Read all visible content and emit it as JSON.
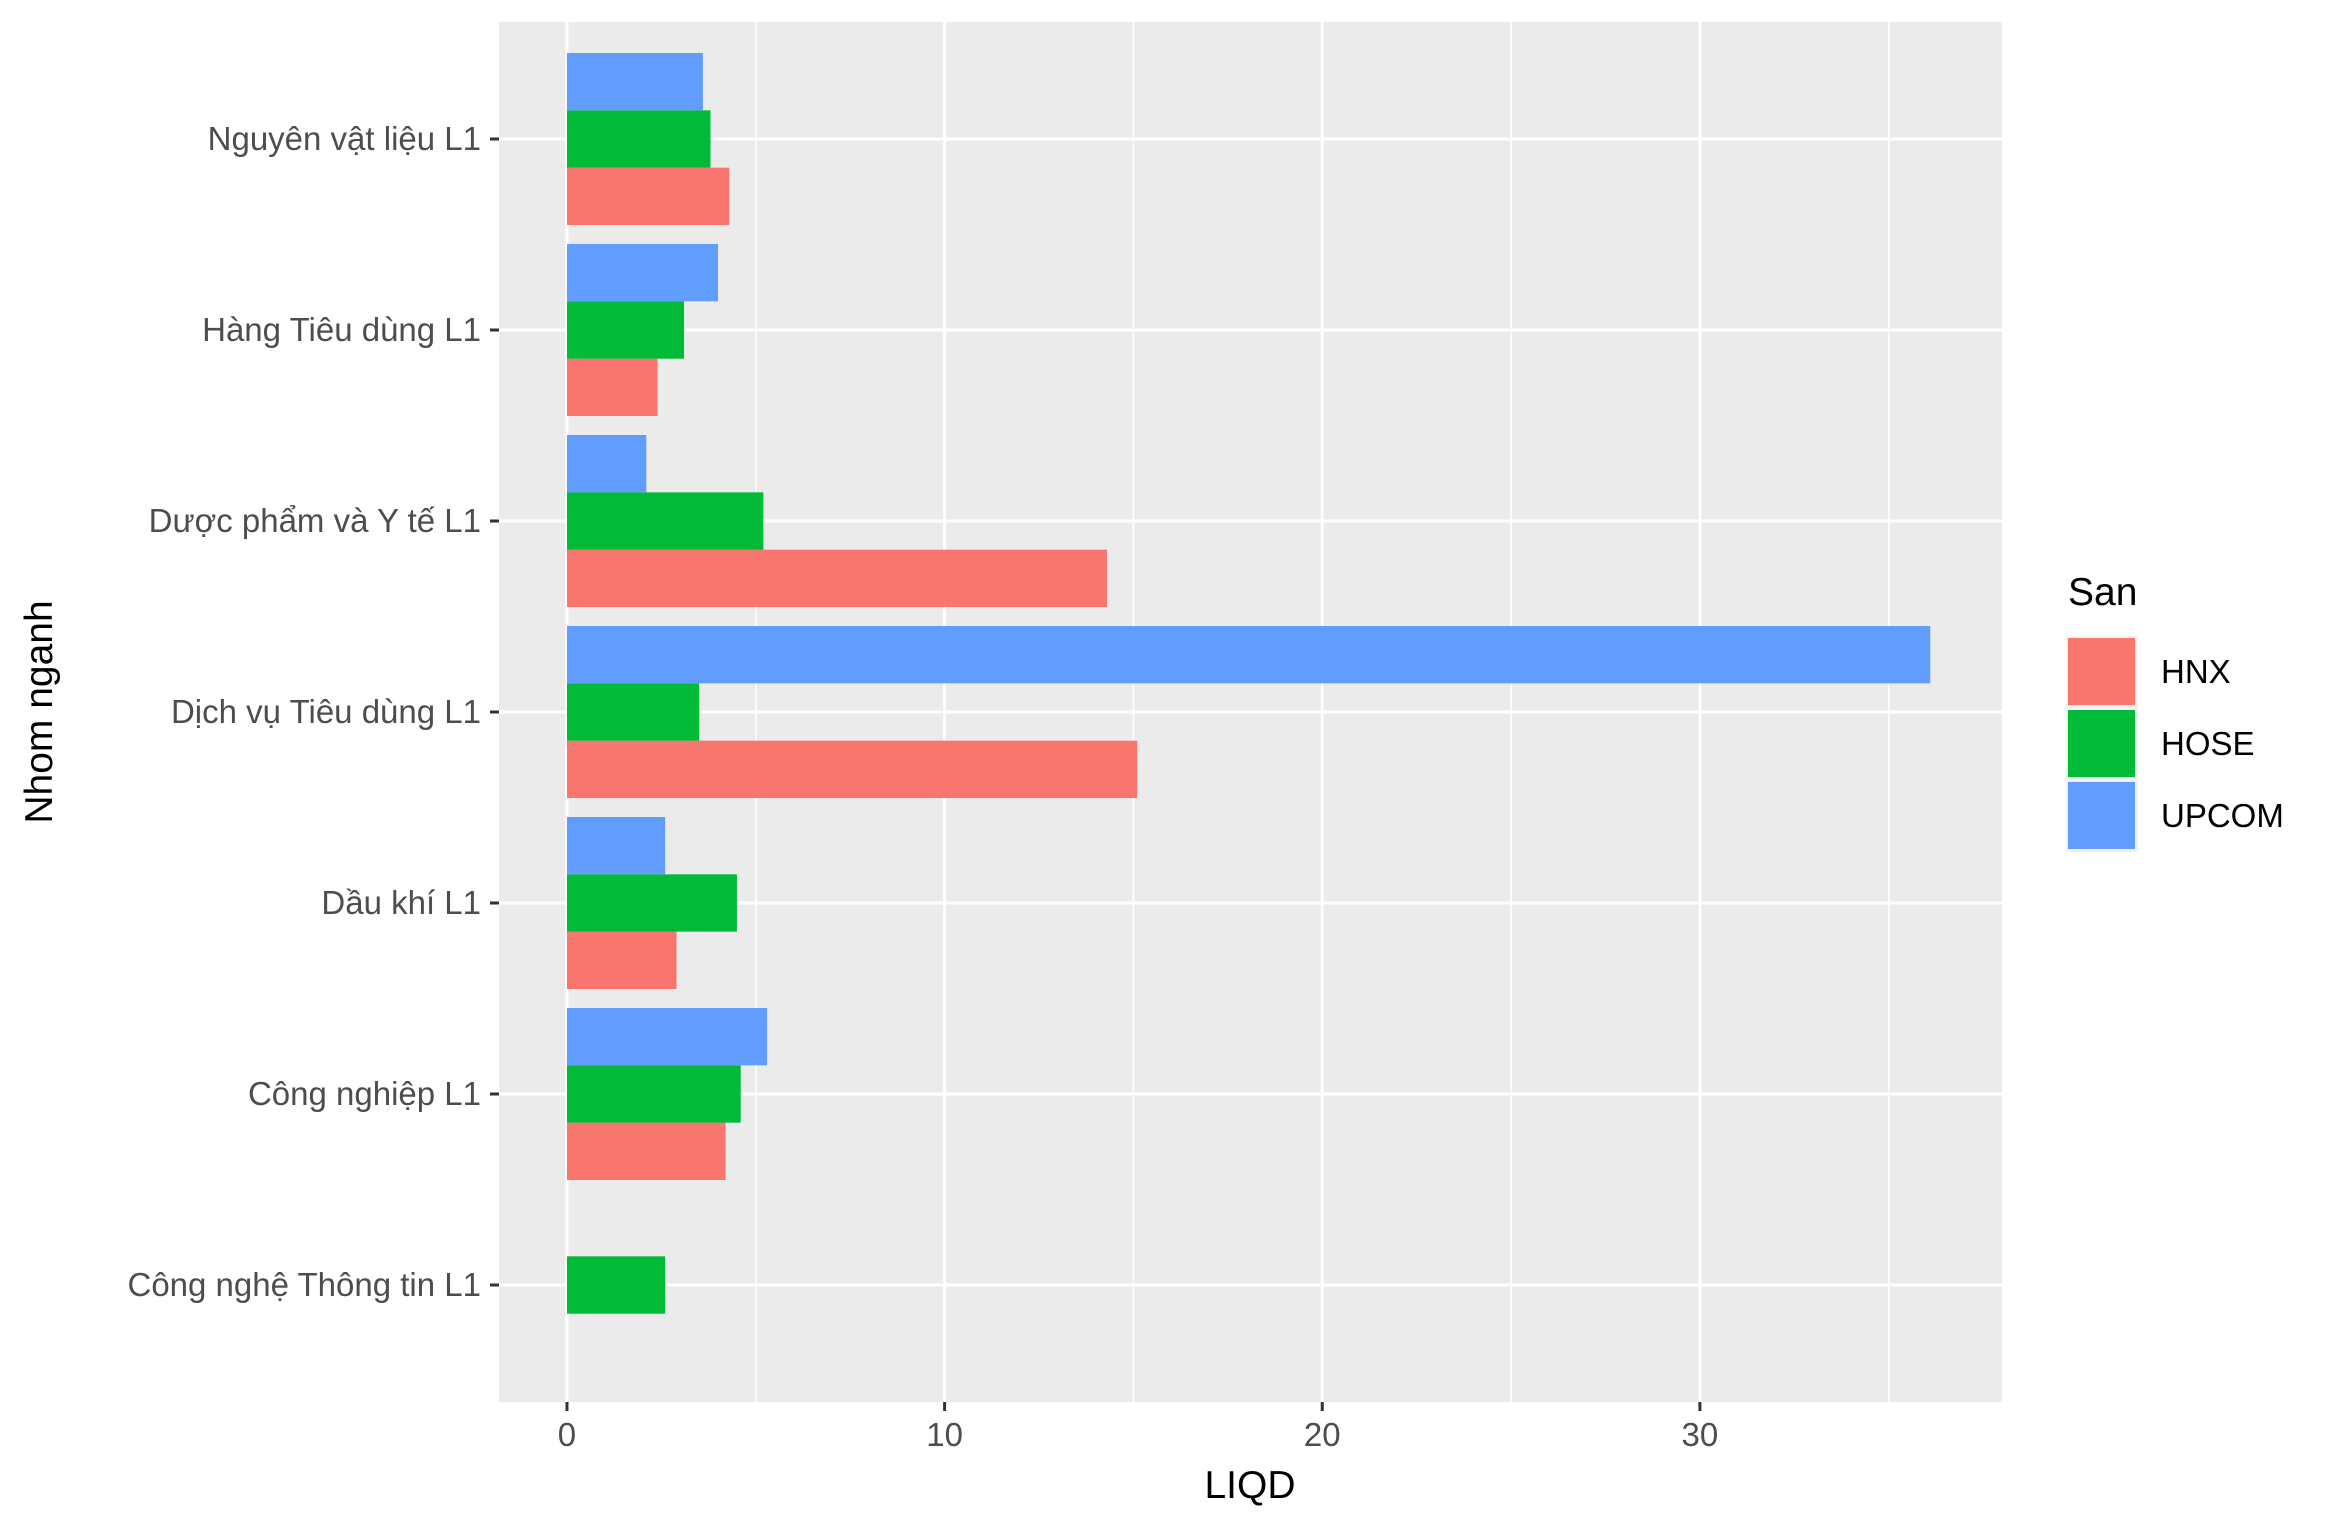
{
  "chart_data": {
    "type": "bar",
    "orientation": "horizontal",
    "xlabel": "LIQD",
    "ylabel": "Nhom nganh",
    "xlim": [
      -1.8,
      38.0
    ],
    "xticks": [
      0,
      10,
      20,
      30
    ],
    "xtick_labels": [
      "0",
      "10",
      "20",
      "30"
    ],
    "grid": true,
    "legend": {
      "title": "San",
      "position": "right"
    },
    "categories": [
      "Nguyên vật liệu L1",
      "Hàng Tiêu dùng L1",
      "Dược phẩm và Y tế L1",
      "Dịch vụ Tiêu dùng L1",
      "Dầu khí L1",
      "Công nghiệp L1",
      "Công nghệ Thông tin L1"
    ],
    "series": [
      {
        "name": "HNX",
        "color": "#F8766D",
        "values": [
          4.3,
          2.4,
          14.3,
          15.1,
          2.9,
          4.2,
          null
        ]
      },
      {
        "name": "HOSE",
        "color": "#00BA38",
        "values": [
          3.8,
          3.1,
          5.2,
          3.5,
          4.5,
          4.6,
          2.6
        ]
      },
      {
        "name": "UPCOM",
        "color": "#619CFF",
        "values": [
          3.6,
          4.0,
          2.1,
          36.1,
          2.6,
          5.3,
          null
        ]
      }
    ]
  }
}
